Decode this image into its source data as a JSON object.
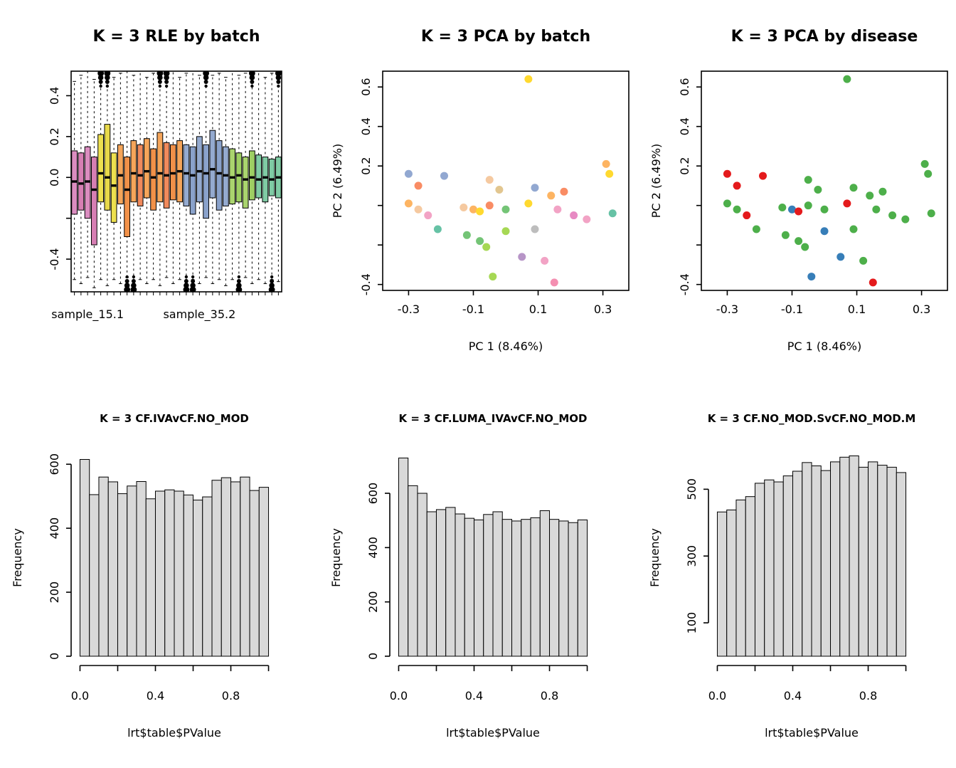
{
  "chart_data": [
    {
      "id": "rle-batch",
      "type": "boxplot",
      "title": "K = 3 RLE by batch",
      "ylim": [
        -0.56,
        0.52
      ],
      "yticks": [
        -0.4,
        -0.2,
        0,
        0.2,
        0.4
      ],
      "ytick_labels": [
        "-0.4",
        "",
        "0.0",
        "0.2",
        "0.4"
      ],
      "x_sample_labels": [
        {
          "label": "sample_15.1",
          "box_index": 2
        },
        {
          "label": "sample_35.2",
          "box_index": 19
        }
      ],
      "boxes": [
        [
          -0.02,
          -0.18,
          0.13,
          -0.5,
          0.47,
          "#DB8DC0"
        ],
        [
          -0.03,
          -0.16,
          0.12,
          -0.52,
          0.5,
          "#D77FB4"
        ],
        [
          -0.02,
          -0.2,
          0.15,
          -0.49,
          0.52,
          "#DB8DC0"
        ],
        [
          -0.06,
          -0.33,
          0.1,
          -0.54,
          0.48,
          "#D77FB4"
        ],
        [
          0.02,
          -0.12,
          0.21,
          -0.5,
          0.52,
          "#EDE04F"
        ],
        [
          0.0,
          -0.16,
          0.26,
          -0.53,
          0.5,
          "#E8D94A"
        ],
        [
          -0.04,
          -0.22,
          0.12,
          -0.5,
          0.49,
          "#EDE04F"
        ],
        [
          0.01,
          -0.13,
          0.16,
          -0.52,
          0.51,
          "#F5A55A"
        ],
        [
          -0.06,
          -0.29,
          0.1,
          -0.49,
          0.52,
          "#F19149"
        ],
        [
          0.02,
          -0.12,
          0.18,
          -0.53,
          0.5,
          "#F5A55A"
        ],
        [
          0.01,
          -0.14,
          0.16,
          -0.5,
          0.52,
          "#F08A5C"
        ],
        [
          0.03,
          -0.1,
          0.19,
          -0.52,
          0.49,
          "#F5A55A"
        ],
        [
          0.0,
          -0.16,
          0.14,
          -0.5,
          0.51,
          "#F19149"
        ],
        [
          0.02,
          -0.12,
          0.22,
          -0.53,
          0.52,
          "#F5A55A"
        ],
        [
          0.01,
          -0.15,
          0.17,
          -0.49,
          0.5,
          "#F08A5C"
        ],
        [
          0.02,
          -0.11,
          0.16,
          -0.52,
          0.52,
          "#F19149"
        ],
        [
          0.03,
          -0.12,
          0.18,
          -0.5,
          0.49,
          "#F5A55A"
        ],
        [
          0.02,
          -0.14,
          0.16,
          -0.53,
          0.51,
          "#94AACF"
        ],
        [
          0.01,
          -0.18,
          0.15,
          -0.5,
          0.52,
          "#8AA2CB"
        ],
        [
          0.03,
          -0.12,
          0.2,
          -0.52,
          0.5,
          "#94AACF"
        ],
        [
          0.02,
          -0.2,
          0.16,
          -0.49,
          0.52,
          "#8AA2CB"
        ],
        [
          0.04,
          -0.1,
          0.23,
          -0.52,
          0.5,
          "#94AACF"
        ],
        [
          0.02,
          -0.16,
          0.18,
          -0.5,
          0.51,
          "#8AA2CB"
        ],
        [
          0.01,
          -0.14,
          0.15,
          -0.53,
          0.49,
          "#94AACF"
        ],
        [
          0.0,
          -0.13,
          0.14,
          -0.5,
          0.52,
          "#AAD46E"
        ],
        [
          0.01,
          -0.12,
          0.12,
          -0.52,
          0.5,
          "#9ECF63"
        ],
        [
          -0.01,
          -0.15,
          0.1,
          -0.49,
          0.51,
          "#AAD46E"
        ],
        [
          0.0,
          -0.11,
          0.13,
          -0.52,
          0.5,
          "#9ECF63"
        ],
        [
          -0.01,
          -0.1,
          0.11,
          -0.5,
          0.52,
          "#7FCBA4"
        ],
        [
          0.0,
          -0.12,
          0.1,
          -0.52,
          0.49,
          "#7FCBA4"
        ],
        [
          -0.01,
          -0.09,
          0.09,
          -0.5,
          0.51,
          "#7FCBA4"
        ],
        [
          0.0,
          -0.1,
          0.1,
          -0.51,
          0.5,
          "#7FCBA4"
        ]
      ],
      "outliers_top": [
        4,
        5,
        13,
        14,
        20,
        27,
        31
      ],
      "outliers_bottom": [
        8,
        9,
        17,
        18,
        25,
        30
      ]
    },
    {
      "id": "pca-batch",
      "type": "scatter",
      "title": "K = 3 PCA by batch",
      "xlabel": "PC 1 (8.46%)",
      "ylabel": "PC 2 (6.49%)",
      "color_by": "batch",
      "xlim": [
        -0.38,
        0.38
      ],
      "ylim": [
        -0.43,
        0.68
      ],
      "xticks": [
        -0.3,
        -0.1,
        0.1,
        0.3
      ],
      "xtick_labels": [
        "-0.3",
        "-0.1",
        "0.1",
        "0.3"
      ],
      "yticks": [
        -0.4,
        -0.2,
        0,
        0.2,
        0.4,
        0.6
      ],
      "ytick_labels": [
        "-0.4",
        "",
        "",
        "0.2",
        "0.4",
        "0.6"
      ]
    },
    {
      "id": "pca-disease",
      "type": "scatter",
      "title": "K = 3 PCA by disease",
      "xlabel": "PC 1 (8.46%)",
      "ylabel": "PC 2 (6.49%)",
      "color_by": "disease",
      "xlim": [
        -0.38,
        0.38
      ],
      "ylim": [
        -0.43,
        0.68
      ],
      "xticks": [
        -0.3,
        -0.1,
        0.1,
        0.3
      ],
      "xtick_labels": [
        "-0.3",
        "-0.1",
        "0.1",
        "0.3"
      ],
      "yticks": [
        -0.4,
        -0.2,
        0,
        0.2,
        0.4,
        0.6
      ],
      "ytick_labels": [
        "-0.4",
        "",
        "",
        "0.2",
        "0.4",
        "0.6"
      ]
    },
    {
      "id": "hist-iva",
      "type": "histogram",
      "title": "K = 3 CF.IVAvCF.NO_MOD",
      "xlabel": "lrt$table$PValue",
      "ylabel": "Frequency",
      "bin_start": 0,
      "bin_width": 0.05,
      "counts": [
        615,
        505,
        560,
        545,
        508,
        532,
        546,
        492,
        516,
        520,
        516,
        504,
        488,
        498,
        550,
        558,
        545,
        560,
        518,
        528
      ],
      "ylim": [
        0,
        645
      ],
      "yticks": [
        0,
        200,
        400,
        600
      ],
      "ytick_labels": [
        "0",
        "200",
        "400",
        "600"
      ],
      "xticks": [
        0,
        0.2,
        0.4,
        0.6,
        0.8,
        1
      ],
      "xtick_labels": [
        "0.0",
        "",
        "0.4",
        "",
        "0.8",
        ""
      ],
      "bar_fill": "#D9D9D9"
    },
    {
      "id": "hist-luma",
      "type": "histogram",
      "title": "K = 3 CF.LUMA_IVAvCF.NO_MOD",
      "xlabel": "lrt$table$PValue",
      "ylabel": "Frequency",
      "bin_start": 0,
      "bin_width": 0.05,
      "counts": [
        730,
        628,
        600,
        532,
        540,
        548,
        524,
        508,
        502,
        522,
        532,
        504,
        498,
        504,
        510,
        536,
        504,
        498,
        492,
        502
      ],
      "ylim": [
        0,
        760
      ],
      "yticks": [
        0,
        200,
        400,
        600
      ],
      "ytick_labels": [
        "0",
        "200",
        "400",
        "600"
      ],
      "xticks": [
        0,
        0.2,
        0.4,
        0.6,
        0.8,
        1
      ],
      "xtick_labels": [
        "0.0",
        "",
        "0.4",
        "",
        "0.8",
        ""
      ],
      "bar_fill": "#D9D9D9"
    },
    {
      "id": "hist-nomod",
      "type": "histogram",
      "title": "K = 3 CF.NO_MOD.SvCF.NO_MOD.M",
      "xlabel": "lrt$table$PValue",
      "ylabel": "Frequency",
      "bin_start": 0,
      "bin_width": 0.05,
      "counts": [
        432,
        438,
        468,
        478,
        518,
        528,
        522,
        540,
        554,
        580,
        570,
        556,
        582,
        596,
        600,
        566,
        582,
        572,
        566,
        550
      ],
      "ylim": [
        0,
        618
      ],
      "yticks": [
        100,
        300,
        500
      ],
      "ytick_labels": [
        "100",
        "300",
        "500"
      ],
      "xticks": [
        0,
        0.2,
        0.4,
        0.6,
        0.8,
        1
      ],
      "xtick_labels": [
        "0.0",
        "",
        "0.4",
        "",
        "0.8",
        ""
      ],
      "bar_fill": "#D9D9D9"
    }
  ],
  "pca_points": [
    [
      0.07,
      0.64,
      "#FFD92F",
      "#4DAF4A"
    ],
    [
      0.31,
      0.21,
      "#FDB462",
      "#4DAF4A"
    ],
    [
      0.32,
      0.16,
      "#FFD92F",
      "#4DAF4A"
    ],
    [
      -0.3,
      0.16,
      "#92A8D1",
      "#E41A1C"
    ],
    [
      -0.27,
      0.1,
      "#F98C64",
      "#E41A1C"
    ],
    [
      -0.19,
      0.15,
      "#92A8D1",
      "#E41A1C"
    ],
    [
      -0.05,
      0.13,
      "#F5C9A0",
      "#4DAF4A"
    ],
    [
      -0.02,
      0.08,
      "#E2C68F",
      "#4DAF4A"
    ],
    [
      0.09,
      0.09,
      "#92A8D1",
      "#4DAF4A"
    ],
    [
      0.14,
      0.05,
      "#FDB462",
      "#4DAF4A"
    ],
    [
      0.18,
      0.07,
      "#F98C64",
      "#4DAF4A"
    ],
    [
      -0.3,
      0.01,
      "#FDB462",
      "#4DAF4A"
    ],
    [
      -0.27,
      -0.02,
      "#F5C9A0",
      "#4DAF4A"
    ],
    [
      -0.24,
      -0.05,
      "#F2A3C5",
      "#E41A1C"
    ],
    [
      -0.13,
      -0.01,
      "#F5C9A0",
      "#4DAF4A"
    ],
    [
      -0.1,
      -0.02,
      "#FDB462",
      "#377EB8"
    ],
    [
      -0.08,
      -0.03,
      "#FFD92F",
      "#E41A1C"
    ],
    [
      -0.05,
      0.0,
      "#F98C64",
      "#4DAF4A"
    ],
    [
      0.0,
      -0.02,
      "#74C476",
      "#4DAF4A"
    ],
    [
      0.07,
      0.01,
      "#FFD92F",
      "#E41A1C"
    ],
    [
      0.16,
      -0.02,
      "#F2A3C5",
      "#4DAF4A"
    ],
    [
      0.21,
      -0.05,
      "#E78AC3",
      "#4DAF4A"
    ],
    [
      0.25,
      -0.07,
      "#F2A3C5",
      "#4DAF4A"
    ],
    [
      0.33,
      -0.04,
      "#66C2A5",
      "#4DAF4A"
    ],
    [
      -0.21,
      -0.12,
      "#66C2A5",
      "#4DAF4A"
    ],
    [
      -0.12,
      -0.15,
      "#74C476",
      "#4DAF4A"
    ],
    [
      -0.08,
      -0.18,
      "#74C476",
      "#4DAF4A"
    ],
    [
      -0.06,
      -0.21,
      "#A6D854",
      "#4DAF4A"
    ],
    [
      0.0,
      -0.13,
      "#A6D854",
      "#377EB8"
    ],
    [
      0.09,
      -0.12,
      "#BDBDBD",
      "#4DAF4A"
    ],
    [
      0.05,
      -0.26,
      "#B795C7",
      "#377EB8"
    ],
    [
      0.12,
      -0.28,
      "#F2A3C5",
      "#4DAF4A"
    ],
    [
      -0.04,
      -0.36,
      "#A6D854",
      "#377EB8"
    ],
    [
      0.15,
      -0.39,
      "#F48FB1",
      "#E41A1C"
    ]
  ],
  "disease_colors": {
    "red": "#E41A1C",
    "green": "#4DAF4A",
    "blue": "#377EB8"
  }
}
